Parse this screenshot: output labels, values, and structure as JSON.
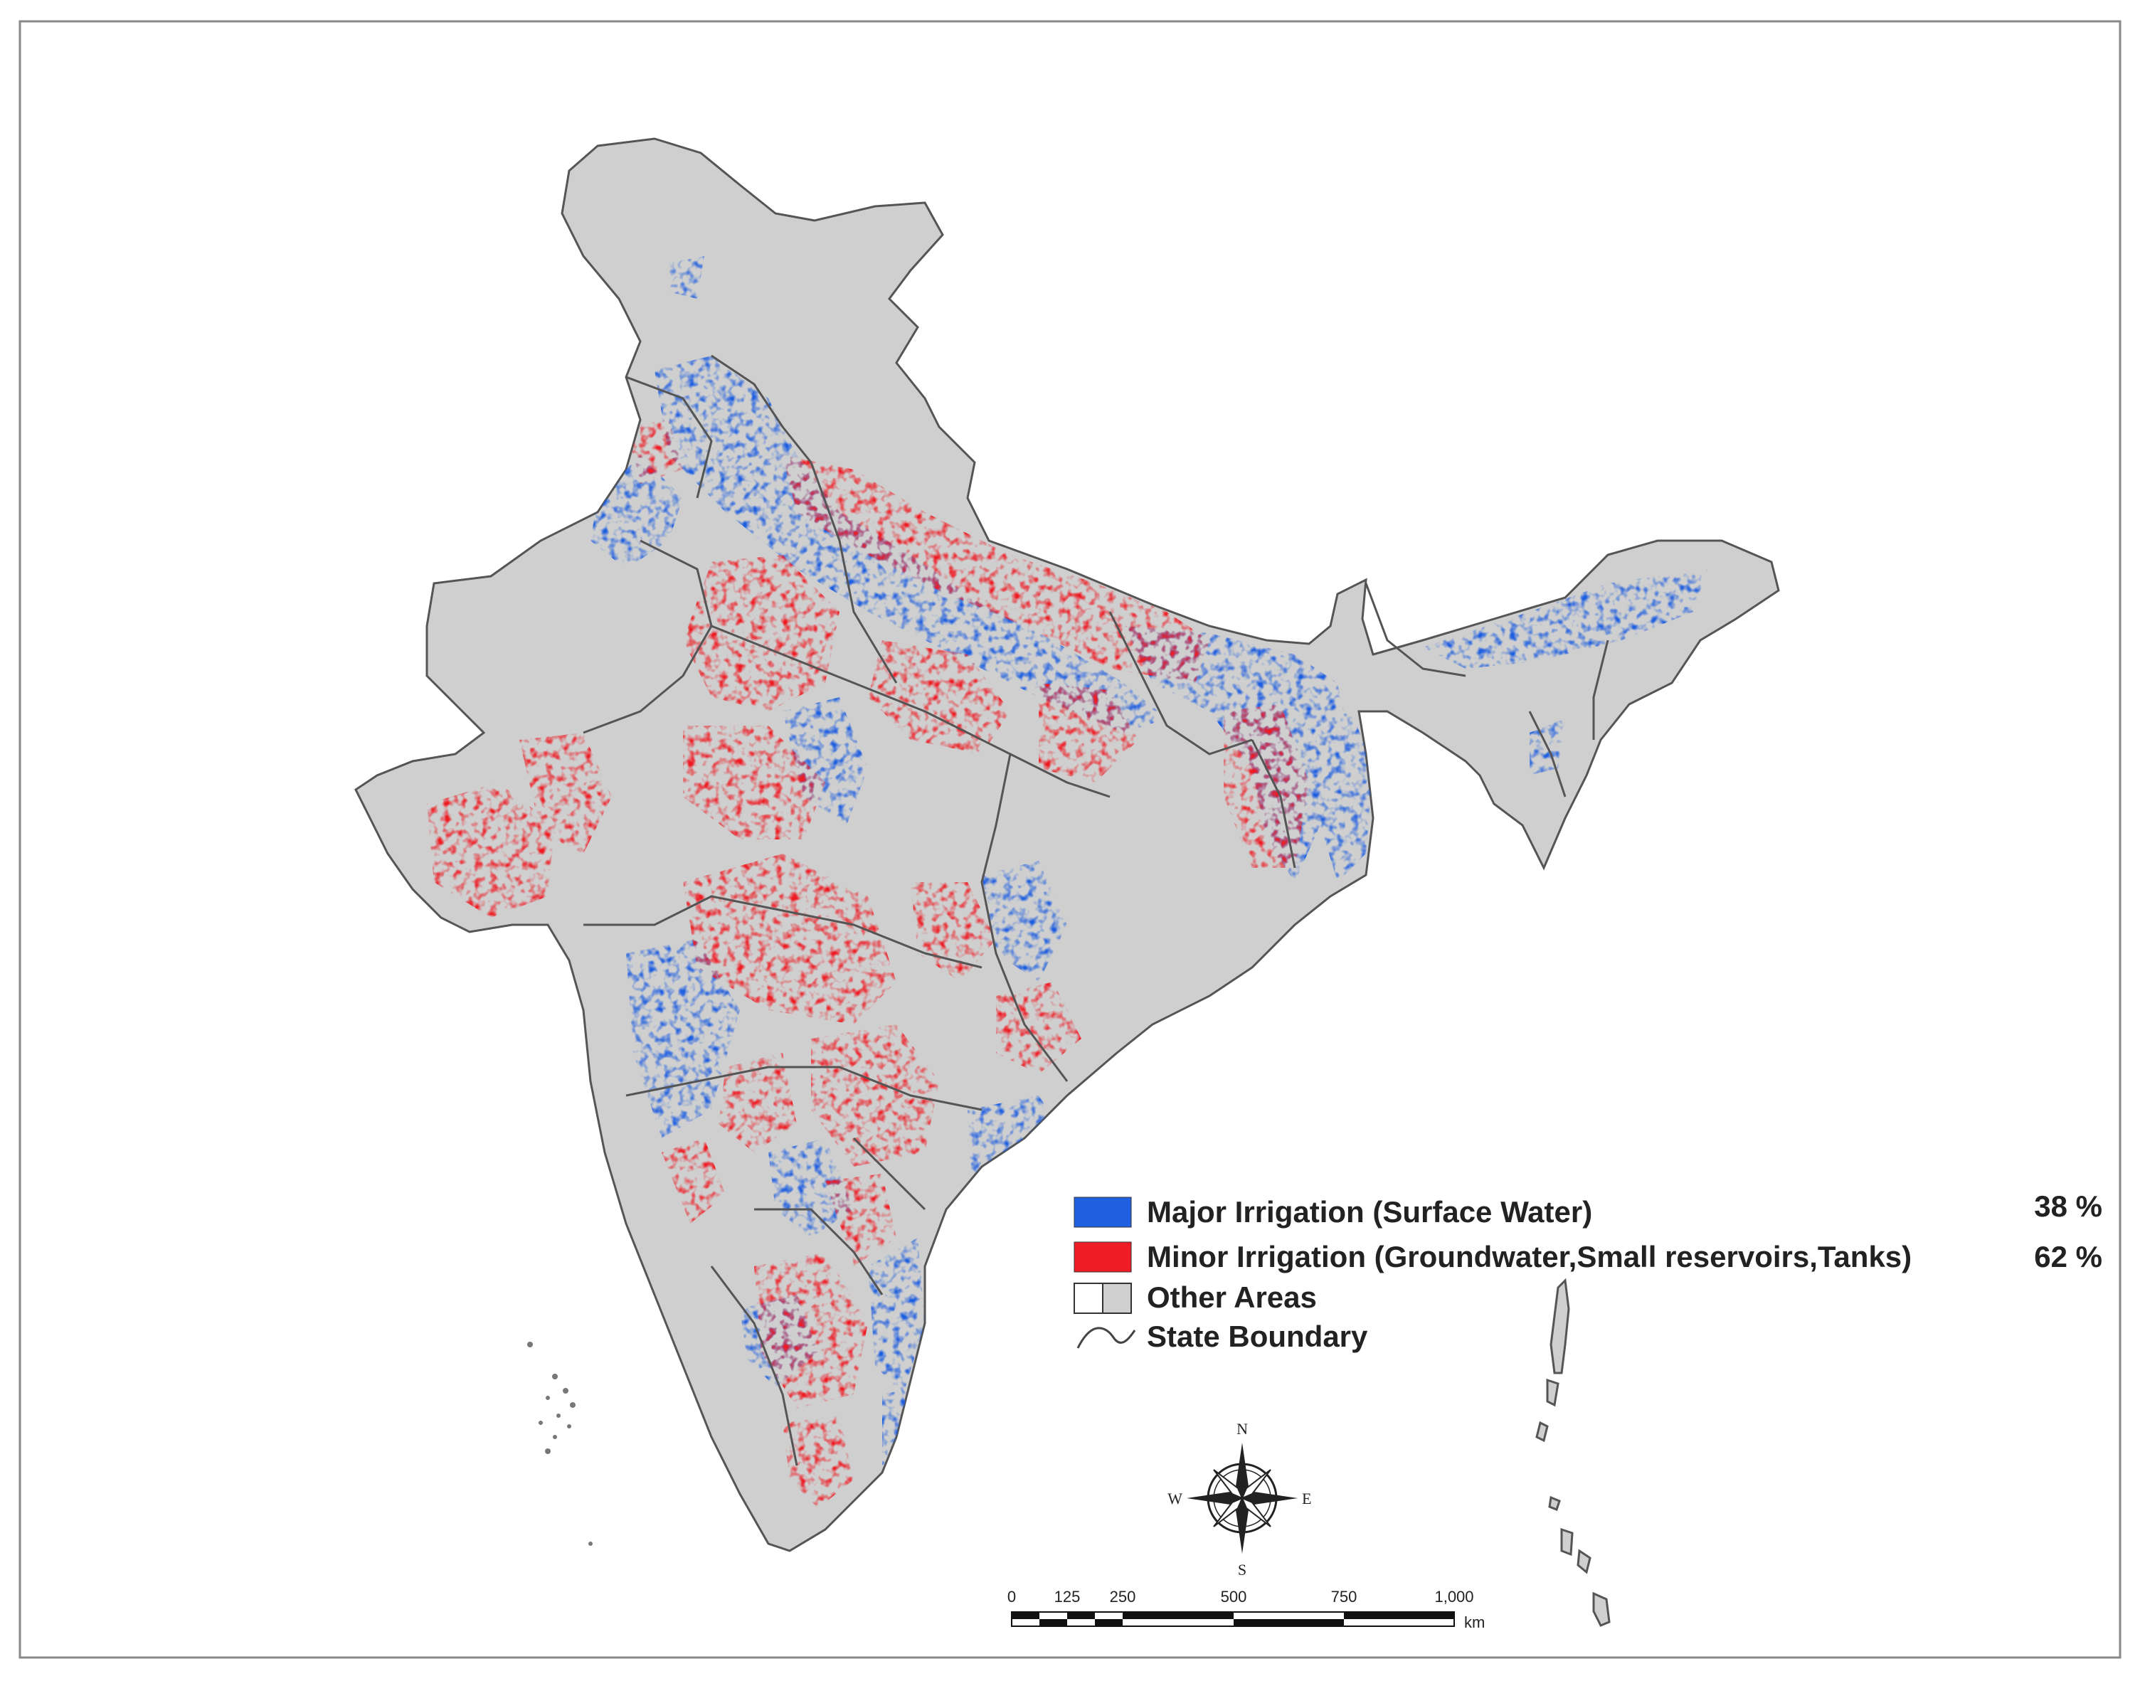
{
  "legend": {
    "items": [
      {
        "label": "Major Irrigation (Surface Water)",
        "color": "#1f5fe0",
        "percent": "38 %"
      },
      {
        "label": "Minor Irrigation (Groundwater,Small reservoirs,Tanks)",
        "color": "#ee1c24",
        "percent": "62 %"
      },
      {
        "label": "Other Areas",
        "color": "#cfcfcf",
        "percent": ""
      },
      {
        "label": "State Boundary",
        "color": "#444444",
        "percent": ""
      }
    ]
  },
  "compass": {
    "n": "N",
    "s": "S",
    "e": "E",
    "w": "W"
  },
  "scale_bar": {
    "ticks": [
      "0",
      "125",
      "250",
      "500",
      "750",
      "1,000"
    ],
    "unit": "km"
  },
  "colors": {
    "land": "#cfcfcf",
    "major": "#1f5fe0",
    "minor": "#ee1c24",
    "boundary": "#555555",
    "frame": "#888888"
  }
}
